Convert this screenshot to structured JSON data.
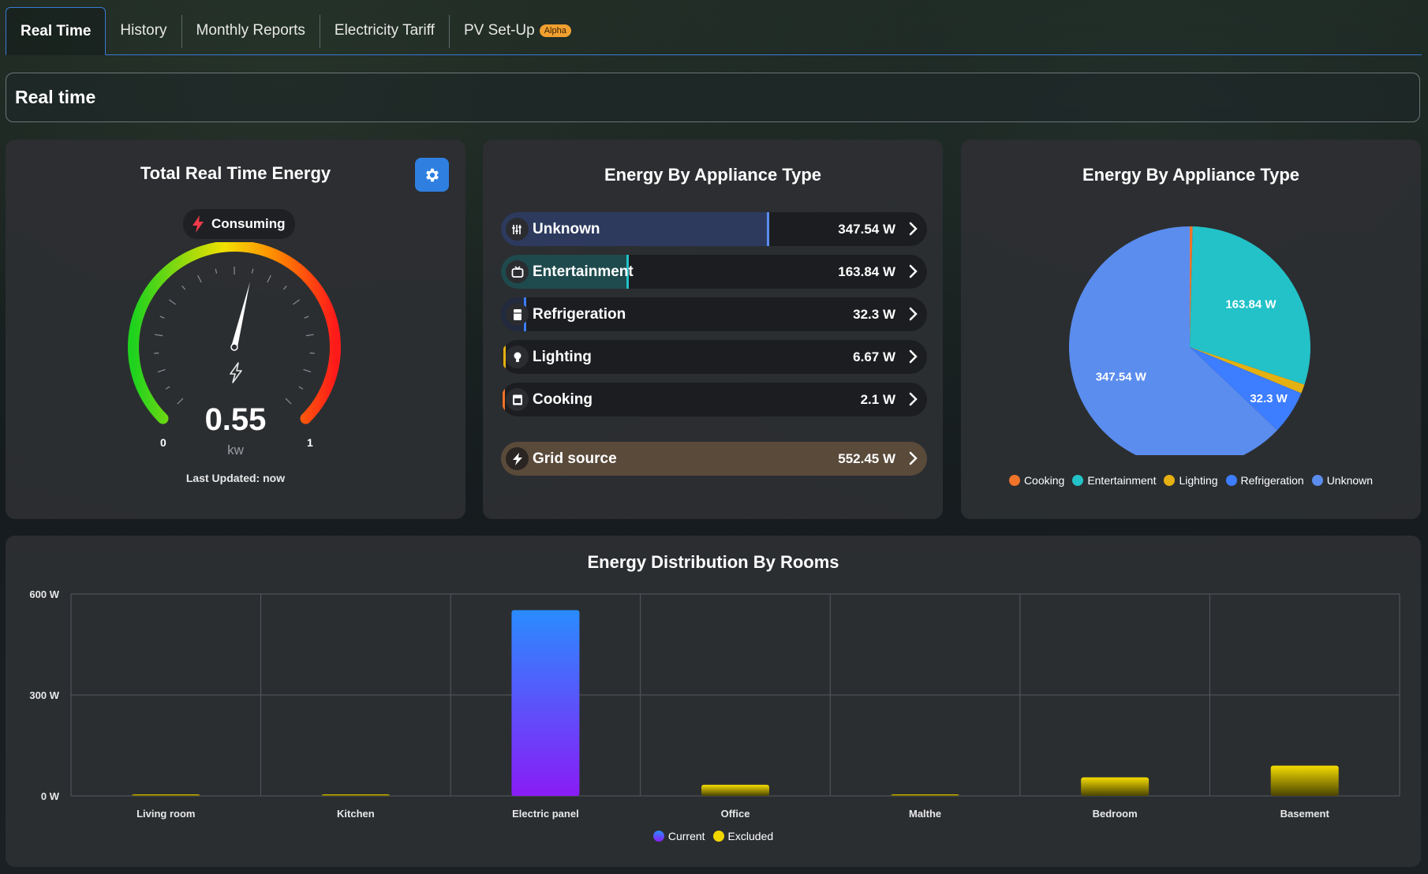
{
  "tabs": [
    {
      "label": "Real Time",
      "active": true
    },
    {
      "label": "History"
    },
    {
      "label": "Monthly Reports"
    },
    {
      "label": "Electricity Tariff"
    },
    {
      "label": "PV Set-Up",
      "badge": "Alpha"
    }
  ],
  "header": {
    "title": "Real time"
  },
  "total_energy": {
    "title": "Total Real Time Energy",
    "status": "Consuming",
    "value": "0.55",
    "unit": "kw",
    "gauge_min": "0",
    "gauge_max": "1",
    "fraction": 0.55,
    "last_updated": "Last Updated: now",
    "settings_icon": "gear-icon"
  },
  "appliance_list": {
    "title": "Energy By Appliance Type",
    "items": [
      {
        "label": "Unknown",
        "value": "347.54 W",
        "fraction": 0.63,
        "color": "#5b8def",
        "fill": "#2d3a5e",
        "icon": "unknown-icon"
      },
      {
        "label": "Entertainment",
        "value": "163.84 W",
        "fraction": 0.3,
        "color": "#22c2c8",
        "fill": "#1f4a4d",
        "icon": "tv-icon"
      },
      {
        "label": "Refrigeration",
        "value": "32.3 W",
        "fraction": 0.06,
        "color": "#3d7dff",
        "fill": "#222a40",
        "icon": "fridge-icon"
      },
      {
        "label": "Lighting",
        "value": "6.67 W",
        "fraction": 0.012,
        "color": "#e5b012",
        "fill": "#2d2b22",
        "icon": "bulb-icon"
      },
      {
        "label": "Cooking",
        "value": "2.1 W",
        "fraction": 0.004,
        "color": "#f0732a",
        "fill": "#2d2622",
        "icon": "oven-icon"
      }
    ],
    "grid": {
      "label": "Grid source",
      "value": "552.45 W",
      "icon": "bolt-icon"
    }
  },
  "appliance_pie": {
    "title": "Energy By Appliance Type",
    "legend": [
      {
        "label": "Cooking",
        "color": "#f0732a"
      },
      {
        "label": "Entertainment",
        "color": "#22c2c8"
      },
      {
        "label": "Lighting",
        "color": "#e5b012"
      },
      {
        "label": "Refrigeration",
        "color": "#3d7dff"
      },
      {
        "label": "Unknown",
        "color": "#5b8def"
      }
    ]
  },
  "chart_data": [
    {
      "type": "pie",
      "title": "Energy By Appliance Type",
      "slices": [
        {
          "label": "Cooking",
          "value": 2.1,
          "color": "#f0732a"
        },
        {
          "label": "Entertainment",
          "value": 163.84,
          "color": "#22c2c8",
          "data_label": "163.84 W"
        },
        {
          "label": "Lighting",
          "value": 6.67,
          "color": "#e5b012"
        },
        {
          "label": "Refrigeration",
          "value": 32.3,
          "color": "#3d7dff",
          "data_label": "32.3 W"
        },
        {
          "label": "Unknown",
          "value": 347.54,
          "color": "#5b8def",
          "data_label": "347.54 W"
        }
      ]
    },
    {
      "type": "bar",
      "title": "Energy Distribution By Rooms",
      "categories": [
        "Living room",
        "Kitchen",
        "Electric panel",
        "Office",
        "Malthe",
        "Bedroom",
        "Basement"
      ],
      "series": [
        {
          "name": "Current",
          "values": [
            0,
            0,
            552,
            0,
            0,
            0,
            0
          ],
          "color": "#7a2cf5"
        },
        {
          "name": "Excluded",
          "values": [
            3,
            3,
            0,
            33,
            3,
            55,
            90
          ],
          "color": "#f2d600"
        }
      ],
      "yticks": [
        "0 W",
        "300 W",
        "600 W"
      ],
      "ylim": [
        0,
        600
      ],
      "grid": true,
      "legend": "bottom"
    }
  ]
}
